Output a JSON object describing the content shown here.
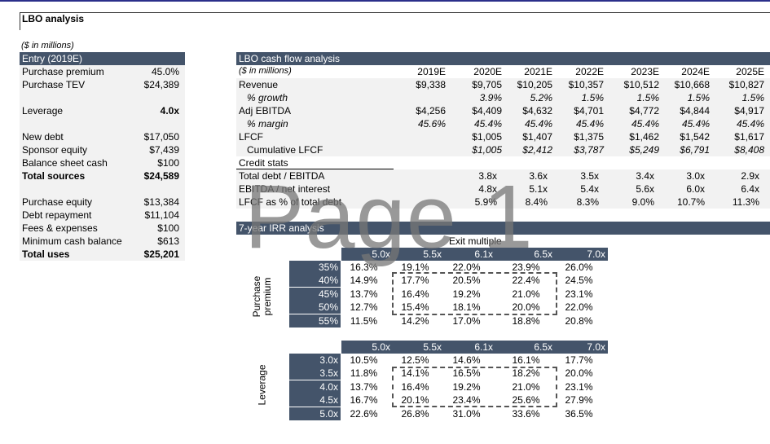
{
  "title": "LBO analysis",
  "units_note": "($ in millions)",
  "entry": {
    "header": "Entry (2019E)",
    "rows": [
      {
        "label": "Purchase premium",
        "value": "45.0%"
      },
      {
        "label": "Purchase TEV",
        "value": "$24,389"
      },
      {
        "label": "Leverage",
        "value": "4.0x"
      },
      {
        "label": "New debt",
        "value": "$17,050"
      },
      {
        "label": "Sponsor equity",
        "value": "$7,439"
      },
      {
        "label": "Balance sheet cash",
        "value": "$100"
      },
      {
        "label": "Total sources",
        "value": "$24,589"
      },
      {
        "label": "Purchase equity",
        "value": "$13,384"
      },
      {
        "label": "Debt repayment",
        "value": "$11,104"
      },
      {
        "label": "Fees & expenses",
        "value": "$100"
      },
      {
        "label": "Minimum cash balance",
        "value": "$613"
      },
      {
        "label": "Total uses",
        "value": "$25,201"
      }
    ]
  },
  "cashflow": {
    "header": "LBO cash flow analysis",
    "units_note": "($ in millions)",
    "years": [
      "2019E",
      "2020E",
      "2021E",
      "2022E",
      "2023E",
      "2024E",
      "2025E"
    ],
    "rows": [
      {
        "label": "Revenue",
        "values": [
          "$9,338",
          "$9,705",
          "$10,205",
          "$10,357",
          "$10,512",
          "$10,668",
          "$10,827"
        ]
      },
      {
        "label": "% growth",
        "values": [
          "",
          "3.9%",
          "5.2%",
          "1.5%",
          "1.5%",
          "1.5%",
          "1.5%"
        ]
      },
      {
        "label": "Adj EBITDA",
        "values": [
          "$4,256",
          "$4,409",
          "$4,632",
          "$4,701",
          "$4,772",
          "$4,844",
          "$4,917"
        ]
      },
      {
        "label": "% margin",
        "values": [
          "45.6%",
          "45.4%",
          "45.4%",
          "45.4%",
          "45.4%",
          "45.4%",
          "45.4%"
        ]
      },
      {
        "label": "LFCF",
        "values": [
          "",
          "$1,005",
          "$1,407",
          "$1,375",
          "$1,462",
          "$1,542",
          "$1,617"
        ]
      },
      {
        "label": "Cumulative LFCF",
        "values": [
          "",
          "$1,005",
          "$2,412",
          "$3,787",
          "$5,249",
          "$6,791",
          "$8,408"
        ]
      }
    ],
    "credit_header": "Credit stats",
    "credit_rows": [
      {
        "label": "Total debt / EBITDA",
        "values": [
          "",
          "3.8x",
          "3.6x",
          "3.5x",
          "3.4x",
          "3.0x",
          "2.9x"
        ]
      },
      {
        "label": "EBITDA / net interest",
        "values": [
          "",
          "4.8x",
          "5.1x",
          "5.4x",
          "5.6x",
          "6.0x",
          "6.4x"
        ]
      },
      {
        "label": "LFCF as % of total debt",
        "values": [
          "",
          "5.9%",
          "8.4%",
          "8.3%",
          "9.0%",
          "10.7%",
          "11.3%"
        ]
      }
    ]
  },
  "irr": {
    "header": "7-year IRR analysis",
    "exit_label": "Exit multiple",
    "exit_multiples": [
      "5.0x",
      "5.5x",
      "6.1x",
      "6.5x",
      "7.0x"
    ],
    "table1": {
      "axis_label_line1": "Purchase",
      "axis_label_line2": "premium",
      "rows": [
        {
          "label": "35%",
          "values": [
            "16.3%",
            "19.1%",
            "22.0%",
            "23.9%",
            "26.0%"
          ]
        },
        {
          "label": "40%",
          "values": [
            "14.9%",
            "17.7%",
            "20.5%",
            "22.4%",
            "24.5%"
          ]
        },
        {
          "label": "45%",
          "values": [
            "13.7%",
            "16.4%",
            "19.2%",
            "21.0%",
            "23.1%"
          ]
        },
        {
          "label": "50%",
          "values": [
            "12.7%",
            "15.4%",
            "18.1%",
            "20.0%",
            "22.0%"
          ]
        },
        {
          "label": "55%",
          "values": [
            "11.5%",
            "14.2%",
            "17.0%",
            "18.8%",
            "20.8%"
          ]
        }
      ]
    },
    "table2": {
      "axis_label": "Leverage",
      "rows": [
        {
          "label": "3.0x",
          "values": [
            "10.5%",
            "12.5%",
            "14.6%",
            "16.1%",
            "17.7%"
          ]
        },
        {
          "label": "3.5x",
          "values": [
            "11.8%",
            "14.1%",
            "16.5%",
            "18.2%",
            "20.0%"
          ]
        },
        {
          "label": "4.0x",
          "values": [
            "13.7%",
            "16.4%",
            "19.2%",
            "21.0%",
            "23.1%"
          ]
        },
        {
          "label": "4.5x",
          "values": [
            "16.7%",
            "20.1%",
            "23.4%",
            "25.6%",
            "27.9%"
          ]
        },
        {
          "label": "5.0x",
          "values": [
            "22.6%",
            "26.8%",
            "31.0%",
            "33.6%",
            "36.5%"
          ]
        }
      ]
    }
  },
  "watermark": "Page 1",
  "colors": {
    "header_bg": "#44546a",
    "row_bg": "#f2f2f2"
  }
}
